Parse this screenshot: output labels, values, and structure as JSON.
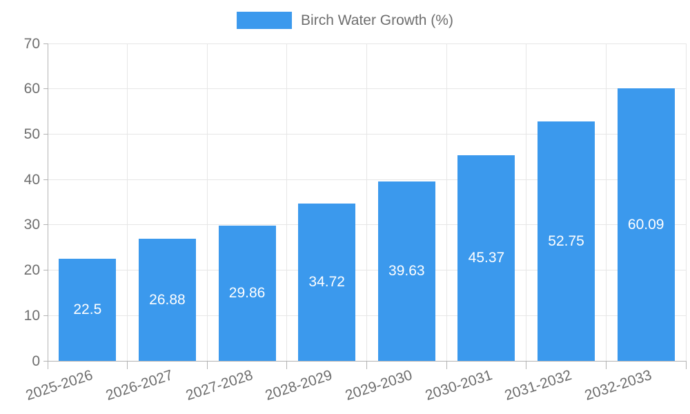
{
  "chart_data": {
    "type": "bar",
    "title": "",
    "legend": "Birch Water Growth (%)",
    "legend_position": "top-center",
    "categories": [
      "2025-2026",
      "2026-2027",
      "2027-2028",
      "2028-2029",
      "2029-2030",
      "2030-2031",
      "2031-2032",
      "2032-2033"
    ],
    "series": [
      {
        "name": "Birch Water Growth (%)",
        "values": [
          22.5,
          26.88,
          29.86,
          34.72,
          39.63,
          45.37,
          52.75,
          60.09
        ]
      }
    ],
    "value_labels": [
      "22.5",
      "26.88",
      "29.86",
      "34.72",
      "39.63",
      "45.37",
      "52.75",
      "60.09"
    ],
    "xlabel": "",
    "ylabel": "",
    "ylim": [
      0,
      70
    ],
    "y_ticks": [
      0,
      10,
      20,
      30,
      40,
      50,
      60,
      70
    ],
    "grid": true,
    "x_label_rotation_deg": -18,
    "colors": {
      "bar": "#3b99ed",
      "bar_value_text": "#ffffff",
      "axis_text": "#6e6e6e",
      "legend_text": "#6e6e6e",
      "grid_line": "#e6e6e6",
      "axis_line": "#b3b3b3"
    }
  }
}
